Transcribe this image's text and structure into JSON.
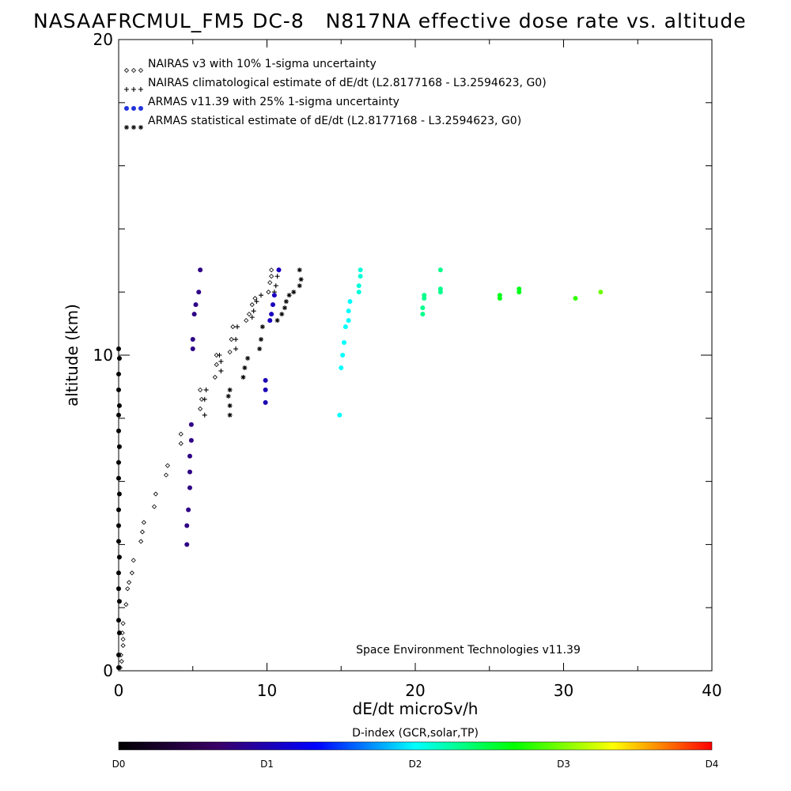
{
  "title": "NASAAFRCMUL_FM5 DC-8   N817NA effective dose rate vs. altitude",
  "chart_data": {
    "type": "scatter",
    "xlabel": "dE/dt microSv/h",
    "ylabel": "altitude (km)",
    "xlim": [
      0,
      40
    ],
    "ylim": [
      0,
      20
    ],
    "x_ticks": [
      "0",
      "10",
      "20",
      "30",
      "40"
    ],
    "y_ticks": [
      "0",
      "10",
      "20"
    ],
    "legend_placement": "top-left",
    "note": "Space Environment Technologies v11.39",
    "colorbar": {
      "title": "D-index (GCR,solar,TP)",
      "labels": [
        {
          "text": "D0",
          "value": 0
        },
        {
          "text": "D1",
          "value": 1
        },
        {
          "text": "D2",
          "value": 2
        },
        {
          "text": "D3",
          "value": 3
        },
        {
          "text": "D4",
          "value": 4
        }
      ],
      "stops": [
        "#000000",
        "#3a0066",
        "#0000ff",
        "#00ffff",
        "#00ff00",
        "#ffff00",
        "#ff0000"
      ]
    },
    "series": [
      {
        "name": "NAIRAS v3 with 10% 1-sigma uncertainty",
        "marker": "diamond",
        "color": "#000000",
        "points": [
          [
            0.1,
            0.1
          ],
          [
            0.2,
            0.3
          ],
          [
            0.15,
            0.5
          ],
          [
            0.3,
            0.8
          ],
          [
            0.3,
            1.0
          ],
          [
            0.25,
            1.2
          ],
          [
            0.3,
            1.5
          ],
          [
            0.5,
            2.1
          ],
          [
            0.6,
            2.6
          ],
          [
            0.7,
            2.8
          ],
          [
            0.9,
            3.1
          ],
          [
            1.0,
            3.5
          ],
          [
            1.5,
            4.1
          ],
          [
            1.6,
            4.4
          ],
          [
            1.7,
            4.7
          ],
          [
            2.4,
            5.2
          ],
          [
            2.5,
            5.6
          ],
          [
            3.2,
            6.2
          ],
          [
            3.3,
            6.5
          ],
          [
            4.2,
            7.2
          ],
          [
            4.2,
            7.5
          ],
          [
            5.5,
            8.3
          ],
          [
            5.6,
            8.6
          ],
          [
            5.5,
            8.9
          ],
          [
            6.5,
            9.3
          ],
          [
            6.6,
            9.7
          ],
          [
            6.6,
            10.0
          ],
          [
            7.5,
            10.1
          ],
          [
            7.6,
            10.5
          ],
          [
            7.7,
            10.9
          ],
          [
            8.6,
            11.1
          ],
          [
            8.8,
            11.3
          ],
          [
            9.0,
            11.6
          ],
          [
            9.2,
            11.8
          ],
          [
            10.1,
            12.0
          ],
          [
            10.2,
            12.3
          ],
          [
            10.3,
            12.5
          ],
          [
            10.3,
            12.7
          ]
        ]
      },
      {
        "name": "NAIRAS climatological estimate of dE/dt (L2.8177168 - L3.2594623, G0)",
        "marker": "plus",
        "color": "#000000",
        "points": [
          [
            5.8,
            8.1
          ],
          [
            5.8,
            8.6
          ],
          [
            5.9,
            8.9
          ],
          [
            6.9,
            9.5
          ],
          [
            6.9,
            9.8
          ],
          [
            6.8,
            10.0
          ],
          [
            7.9,
            10.2
          ],
          [
            7.9,
            10.5
          ],
          [
            8.0,
            10.9
          ],
          [
            9.0,
            11.2
          ],
          [
            9.1,
            11.4
          ],
          [
            9.3,
            11.7
          ],
          [
            9.6,
            11.9
          ],
          [
            10.5,
            12.0
          ],
          [
            10.6,
            12.2
          ],
          [
            10.7,
            12.5
          ],
          [
            10.8,
            12.7
          ]
        ]
      },
      {
        "name": "ARMAS v11.39 with 25% 1-sigma uncertainty",
        "marker": "dot",
        "color": "#2233dd",
        "points": [
          [
            0.0,
            0.1,
            0.0
          ],
          [
            0.0,
            0.5,
            0.0
          ],
          [
            0.05,
            1.2,
            0.0
          ],
          [
            0.0,
            1.6,
            0.0
          ],
          [
            0.05,
            2.2,
            0.0
          ],
          [
            0.0,
            2.6,
            0.0
          ],
          [
            0.0,
            3.1,
            0.0
          ],
          [
            0.05,
            3.6,
            0.0
          ],
          [
            0.0,
            4.1,
            0.0
          ],
          [
            0.0,
            4.6,
            0.0
          ],
          [
            0.0,
            5.1,
            0.0
          ],
          [
            0.05,
            5.6,
            0.0
          ],
          [
            0.0,
            6.1,
            0.0
          ],
          [
            0.0,
            6.6,
            0.0
          ],
          [
            0.05,
            7.1,
            0.0
          ],
          [
            0.0,
            7.6,
            0.0
          ],
          [
            0.0,
            8.1,
            0.0
          ],
          [
            0.05,
            8.4,
            0.0
          ],
          [
            0.0,
            8.9,
            0.0
          ],
          [
            0.0,
            9.4,
            0.0
          ],
          [
            0.05,
            9.9,
            0.0
          ],
          [
            0.0,
            10.2,
            0.0
          ],
          [
            4.6,
            4.0,
            0.8
          ],
          [
            4.6,
            4.6,
            0.8
          ],
          [
            4.7,
            5.1,
            0.8
          ],
          [
            4.8,
            5.8,
            0.8
          ],
          [
            4.8,
            6.3,
            0.8
          ],
          [
            4.8,
            6.8,
            0.8
          ],
          [
            4.9,
            7.3,
            0.8
          ],
          [
            4.9,
            7.8,
            0.8
          ],
          [
            5.0,
            10.2,
            0.8
          ],
          [
            5.0,
            10.5,
            0.8
          ],
          [
            5.1,
            11.3,
            0.8
          ],
          [
            5.2,
            11.6,
            0.8
          ],
          [
            5.4,
            12.0,
            0.8
          ],
          [
            5.5,
            12.7,
            0.8
          ],
          [
            9.9,
            8.5,
            1.0
          ],
          [
            9.9,
            8.9,
            1.0
          ],
          [
            9.9,
            9.2,
            1.0
          ],
          [
            10.2,
            11.1,
            1.05
          ],
          [
            10.3,
            11.3,
            1.05
          ],
          [
            10.4,
            11.6,
            1.05
          ],
          [
            10.5,
            11.9,
            1.05
          ],
          [
            10.8,
            12.7,
            1.05
          ],
          [
            14.9,
            8.1,
            2.0
          ],
          [
            15.0,
            9.6,
            2.0
          ],
          [
            15.1,
            10.0,
            2.0
          ],
          [
            15.2,
            10.4,
            2.0
          ],
          [
            15.3,
            10.9,
            2.0
          ],
          [
            15.5,
            11.1,
            2.0
          ],
          [
            15.5,
            11.4,
            2.0
          ],
          [
            15.6,
            11.7,
            2.0
          ],
          [
            16.2,
            12.0,
            2.1
          ],
          [
            16.2,
            12.2,
            2.1
          ],
          [
            16.3,
            12.5,
            2.1
          ],
          [
            16.3,
            12.7,
            2.1
          ],
          [
            20.5,
            11.3,
            2.3
          ],
          [
            20.5,
            11.5,
            2.3
          ],
          [
            20.6,
            11.8,
            2.3
          ],
          [
            20.6,
            11.9,
            2.3
          ],
          [
            21.7,
            12.0,
            2.3
          ],
          [
            21.7,
            12.1,
            2.3
          ],
          [
            21.7,
            12.7,
            2.3
          ],
          [
            25.7,
            11.8,
            2.6
          ],
          [
            25.7,
            11.9,
            2.6
          ],
          [
            27.0,
            12.0,
            2.6
          ],
          [
            27.0,
            12.1,
            2.6
          ],
          [
            30.8,
            11.8,
            2.8
          ],
          [
            32.5,
            12.0,
            2.95
          ]
        ]
      },
      {
        "name": "ARMAS statistical estimate of dE/dt (L2.8177168 - L3.2594623, G0)",
        "marker": "asterisk",
        "color": "#000000",
        "points": [
          [
            7.5,
            8.1
          ],
          [
            7.5,
            8.4
          ],
          [
            7.4,
            8.7
          ],
          [
            7.5,
            8.9
          ],
          [
            8.4,
            9.3
          ],
          [
            8.5,
            9.6
          ],
          [
            8.7,
            9.9
          ],
          [
            9.5,
            10.2
          ],
          [
            9.6,
            10.5
          ],
          [
            9.7,
            10.9
          ],
          [
            10.7,
            11.1
          ],
          [
            11.0,
            11.3
          ],
          [
            11.2,
            11.5
          ],
          [
            11.3,
            11.7
          ],
          [
            11.5,
            11.9
          ],
          [
            11.8,
            12.0
          ],
          [
            12.2,
            12.2
          ],
          [
            12.3,
            12.4
          ],
          [
            12.2,
            12.7
          ]
        ]
      }
    ]
  }
}
